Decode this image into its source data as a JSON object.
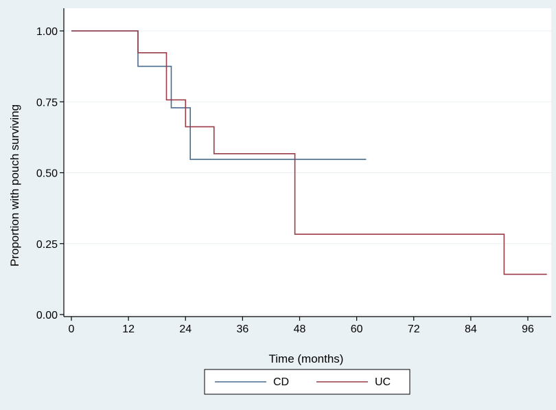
{
  "chart_data": {
    "type": "line",
    "step": true,
    "xlabel": "Time (months)",
    "ylabel": "Proportion with pouch surviving",
    "xlim": [
      0,
      100
    ],
    "ylim": [
      0,
      1.05
    ],
    "x_ticks": [
      0,
      12,
      24,
      36,
      48,
      60,
      72,
      84,
      96
    ],
    "y_ticks": [
      0,
      0.25,
      0.5,
      0.75,
      1
    ],
    "x_tick_labels": [
      "0",
      "12",
      "24",
      "36",
      "48",
      "60",
      "72",
      "84",
      "96"
    ],
    "y_tick_labels": [
      "0.00",
      "0.25",
      "0.50",
      "0.75",
      "1.00"
    ],
    "grid": true,
    "legend_position": "bottom",
    "series": [
      {
        "name": "CD",
        "color": "#466b8e",
        "points": [
          [
            0,
            1.0
          ],
          [
            14,
            1.0
          ],
          [
            14,
            0.875
          ],
          [
            21,
            0.875
          ],
          [
            21,
            0.729
          ],
          [
            25,
            0.729
          ],
          [
            25,
            0.547
          ],
          [
            62,
            0.547
          ]
        ]
      },
      {
        "name": "UC",
        "color": "#9b3b47",
        "points": [
          [
            0,
            1.0
          ],
          [
            14,
            1.0
          ],
          [
            14,
            0.923
          ],
          [
            20,
            0.923
          ],
          [
            20,
            0.757
          ],
          [
            24,
            0.757
          ],
          [
            24,
            0.662
          ],
          [
            30,
            0.662
          ],
          [
            30,
            0.567
          ],
          [
            47,
            0.567
          ],
          [
            47,
            0.283
          ],
          [
            91,
            0.283
          ],
          [
            91,
            0.142
          ],
          [
            100,
            0.142
          ]
        ]
      }
    ],
    "legend": [
      {
        "label": "CD",
        "color": "#466b8e"
      },
      {
        "label": "UC",
        "color": "#9b3b47"
      }
    ]
  }
}
